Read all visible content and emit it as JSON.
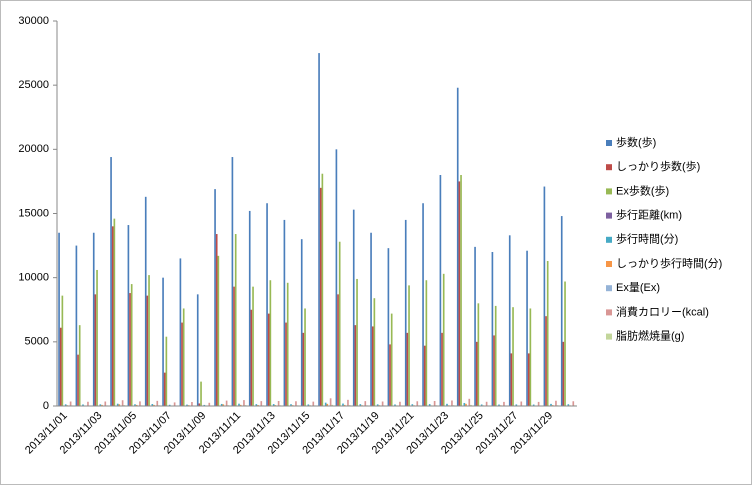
{
  "chart_data": {
    "type": "bar",
    "categories": [
      "2013/11/01",
      null,
      "2013/11/03",
      null,
      "2013/11/05",
      null,
      "2013/11/07",
      null,
      "2013/11/09",
      null,
      "2013/11/11",
      null,
      "2013/11/13",
      null,
      "2013/11/15",
      null,
      "2013/11/17",
      null,
      "2013/11/19",
      null,
      "2013/11/21",
      null,
      "2013/11/23",
      null,
      "2013/11/25",
      null,
      "2013/11/27",
      null,
      "2013/11/29",
      null
    ],
    "series": [
      {
        "name": "歩数(歩)",
        "color": "#4a7ebb",
        "values": [
          13500,
          12500,
          13500,
          19400,
          14100,
          16300,
          10000,
          11500,
          8700,
          16900,
          19400,
          15200,
          15800,
          14500,
          13000,
          27500,
          20000,
          15300,
          13500,
          12300,
          14500,
          15800,
          18000,
          24800,
          12400,
          12000,
          13300,
          12100,
          17100,
          14800
        ]
      },
      {
        "name": "しっかり歩数(歩)",
        "color": "#be4b48",
        "values": [
          6100,
          4000,
          8700,
          14000,
          8800,
          8600,
          2600,
          6500,
          200,
          13400,
          9300,
          7500,
          7200,
          6500,
          5700,
          17000,
          8700,
          6300,
          6200,
          4800,
          5700,
          4700,
          5700,
          17500,
          5000,
          5500,
          4100,
          4100,
          7000,
          5000
        ]
      },
      {
        "name": "Ex歩数(歩)",
        "color": "#98b954",
        "values": [
          8600,
          6300,
          10600,
          14600,
          9500,
          10200,
          5400,
          7600,
          1900,
          11700,
          13400,
          9300,
          9800,
          9600,
          7600,
          18100,
          12800,
          9900,
          8400,
          7200,
          9400,
          9800,
          10300,
          18000,
          8000,
          7800,
          7700,
          7600,
          11300,
          9700
        ]
      },
      {
        "name": "歩行距離(km)",
        "color": "#7d60a0",
        "values": [
          9,
          8,
          9,
          13,
          9,
          11,
          7,
          8,
          6,
          11,
          13,
          10,
          10,
          10,
          9,
          18,
          13,
          10,
          9,
          8,
          10,
          10,
          12,
          16,
          8,
          8,
          9,
          8,
          11,
          10
        ]
      },
      {
        "name": "歩行時間(分)",
        "color": "#46aac5",
        "values": [
          130,
          120,
          130,
          180,
          135,
          155,
          95,
          110,
          85,
          160,
          180,
          145,
          150,
          140,
          125,
          260,
          190,
          145,
          130,
          120,
          140,
          150,
          170,
          235,
          120,
          115,
          125,
          115,
          165,
          140
        ]
      },
      {
        "name": "しっかり歩行時間(分)",
        "color": "#f79646",
        "values": [
          60,
          40,
          85,
          135,
          85,
          85,
          25,
          65,
          2,
          130,
          90,
          75,
          70,
          65,
          55,
          165,
          85,
          60,
          60,
          45,
          55,
          45,
          55,
          170,
          50,
          55,
          40,
          40,
          70,
          50
        ]
      },
      {
        "name": "Ex量(Ex)",
        "color": "#95b3d7",
        "values": [
          3,
          2,
          3,
          5,
          3,
          3,
          2,
          3,
          1,
          4,
          5,
          3,
          3,
          3,
          3,
          6,
          4,
          3,
          3,
          2,
          3,
          3,
          4,
          6,
          3,
          3,
          3,
          3,
          4,
          3
        ]
      },
      {
        "name": "消費カロリー(kcal)",
        "color": "#d99694",
        "values": [
          350,
          330,
          350,
          450,
          360,
          400,
          280,
          310,
          250,
          420,
          460,
          380,
          390,
          370,
          340,
          600,
          480,
          380,
          350,
          330,
          370,
          390,
          430,
          560,
          330,
          320,
          350,
          320,
          410,
          370
        ]
      },
      {
        "name": "脂肪燃焼量(g)",
        "color": "#c3d69b",
        "values": [
          45,
          40,
          45,
          65,
          48,
          55,
          35,
          40,
          30,
          58,
          65,
          50,
          52,
          48,
          44,
          90,
          67,
          50,
          45,
          41,
          48,
          52,
          60,
          85,
          41,
          40,
          44,
          40,
          57,
          49
        ]
      }
    ],
    "ylim": [
      0,
      30000
    ],
    "yticks": [
      0,
      5000,
      10000,
      15000,
      20000,
      25000,
      30000
    ],
    "grid": false,
    "legend": "right"
  }
}
